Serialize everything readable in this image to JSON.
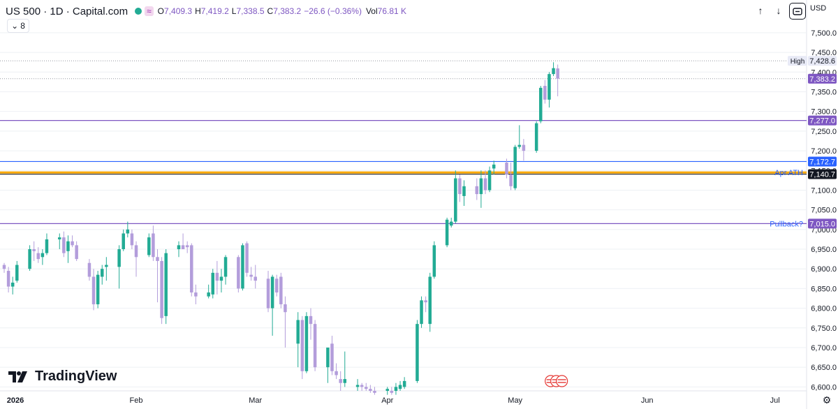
{
  "header": {
    "title": "US 500 · 1D · Capital.com",
    "wave_icon": "≈",
    "o_label": "O",
    "o_value": "7,409.3",
    "h_label": "H",
    "h_value": "7,419.2",
    "l_label": "L",
    "l_value": "7,338.5",
    "c_label": "C",
    "c_value": "7,383.2",
    "change": "−26.6 (−0.36%)",
    "vol_label": "Vol",
    "vol_value": "76.81 K",
    "collapse_count": "8",
    "currency": "USD"
  },
  "toolbar": {
    "up_icon": "↑",
    "down_icon": "↓",
    "settings_icon": "⚙"
  },
  "brand": {
    "name": "TradingView"
  },
  "colors": {
    "up": "#22ab94",
    "down": "#b39ddb",
    "purple_line": "#7e57c2",
    "blue_line": "#2962ff",
    "orange_line": "#f7a600",
    "grid": "#eef0f4"
  },
  "chart_data": {
    "type": "candlestick",
    "symbol": "US 500",
    "interval": "1D",
    "y_ticks": [
      "7,500.0",
      "7,450.0",
      "7,400.0",
      "7,350.0",
      "7,300.0",
      "7,250.0",
      "7,200.0",
      "7,150.0",
      "7,100.0",
      "7,050.0",
      "7,000.0",
      "6,950.0",
      "6,900.0",
      "6,850.0",
      "6,800.0",
      "6,750.0",
      "6,700.0",
      "6,650.0",
      "6,600.0"
    ],
    "y_tick_values": [
      7500,
      7450,
      7400,
      7350,
      7300,
      7250,
      7200,
      7150,
      7100,
      7050,
      7000,
      6950,
      6900,
      6850,
      6800,
      6750,
      6700,
      6650,
      6600
    ],
    "ylim": [
      6590,
      7530
    ],
    "x_labels": [
      {
        "label": "2026",
        "day": 0
      },
      {
        "label": "Feb",
        "day": 31
      },
      {
        "label": "Mar",
        "day": 59
      },
      {
        "label": "Apr",
        "day": 90
      },
      {
        "label": "May",
        "day": 120
      },
      {
        "label": "Jun",
        "day": 151
      },
      {
        "label": "Jul",
        "day": 181
      }
    ],
    "xlim_days": [
      0,
      185
    ],
    "candles": [
      {
        "d": 0,
        "o": 6910,
        "h": 6915,
        "l": 6890,
        "c": 6900
      },
      {
        "d": 1,
        "o": 6895,
        "h": 6905,
        "l": 6840,
        "c": 6855
      },
      {
        "d": 2,
        "o": 6855,
        "h": 6880,
        "l": 6835,
        "c": 6865
      },
      {
        "d": 3,
        "o": 6870,
        "h": 6920,
        "l": 6865,
        "c": 6910
      },
      {
        "d": 6,
        "o": 6900,
        "h": 6960,
        "l": 6895,
        "c": 6950
      },
      {
        "d": 7,
        "o": 6950,
        "h": 6970,
        "l": 6920,
        "c": 6945
      },
      {
        "d": 8,
        "o": 6940,
        "h": 6955,
        "l": 6915,
        "c": 6925
      },
      {
        "d": 9,
        "o": 6930,
        "h": 6950,
        "l": 6910,
        "c": 6940
      },
      {
        "d": 10,
        "o": 6940,
        "h": 6990,
        "l": 6935,
        "c": 6975
      },
      {
        "d": 13,
        "o": 6975,
        "h": 6990,
        "l": 6950,
        "c": 6980
      },
      {
        "d": 14,
        "o": 6980,
        "h": 6995,
        "l": 6930,
        "c": 6940
      },
      {
        "d": 15,
        "o": 6945,
        "h": 6985,
        "l": 6915,
        "c": 6970
      },
      {
        "d": 16,
        "o": 6970,
        "h": 6985,
        "l": 6955,
        "c": 6960
      },
      {
        "d": 17,
        "o": 6960,
        "h": 6970,
        "l": 6920,
        "c": 6925
      },
      {
        "d": 20,
        "o": 6915,
        "h": 6925,
        "l": 6870,
        "c": 6880
      },
      {
        "d": 21,
        "o": 6880,
        "h": 6900,
        "l": 6795,
        "c": 6810
      },
      {
        "d": 22,
        "o": 6810,
        "h": 6895,
        "l": 6800,
        "c": 6885
      },
      {
        "d": 23,
        "o": 6880,
        "h": 6910,
        "l": 6860,
        "c": 6900
      },
      {
        "d": 24,
        "o": 6905,
        "h": 6930,
        "l": 6870,
        "c": 6910
      },
      {
        "d": 27,
        "o": 6905,
        "h": 6960,
        "l": 6850,
        "c": 6950
      },
      {
        "d": 28,
        "o": 6950,
        "h": 7000,
        "l": 6945,
        "c": 6990
      },
      {
        "d": 29,
        "o": 6990,
        "h": 7020,
        "l": 6980,
        "c": 7000
      },
      {
        "d": 30,
        "o": 6990,
        "h": 7000,
        "l": 6950,
        "c": 6960
      },
      {
        "d": 31,
        "o": 6960,
        "h": 6970,
        "l": 6880,
        "c": 6930
      },
      {
        "d": 34,
        "o": 6935,
        "h": 6990,
        "l": 6930,
        "c": 6980
      },
      {
        "d": 35,
        "o": 6990,
        "h": 7010,
        "l": 6920,
        "c": 6930
      },
      {
        "d": 36,
        "o": 6930,
        "h": 6950,
        "l": 6815,
        "c": 6920
      },
      {
        "d": 37,
        "o": 6920,
        "h": 6930,
        "l": 6760,
        "c": 6775
      },
      {
        "d": 38,
        "o": 6780,
        "h": 6950,
        "l": 6760,
        "c": 6940
      },
      {
        "d": 41,
        "o": 6950,
        "h": 6970,
        "l": 6930,
        "c": 6960
      },
      {
        "d": 42,
        "o": 6960,
        "h": 6990,
        "l": 6950,
        "c": 6950
      },
      {
        "d": 43,
        "o": 6960,
        "h": 6970,
        "l": 6940,
        "c": 6955
      },
      {
        "d": 44,
        "o": 6960,
        "h": 6965,
        "l": 6830,
        "c": 6840
      },
      {
        "d": 45,
        "o": 6840,
        "h": 6860,
        "l": 6810,
        "c": 6830
      },
      {
        "d": 48,
        "o": 6830,
        "h": 6860,
        "l": 6825,
        "c": 6840
      },
      {
        "d": 49,
        "o": 6835,
        "h": 6900,
        "l": 6825,
        "c": 6890
      },
      {
        "d": 50,
        "o": 6890,
        "h": 6920,
        "l": 6835,
        "c": 6870
      },
      {
        "d": 51,
        "o": 6870,
        "h": 6900,
        "l": 6840,
        "c": 6880
      },
      {
        "d": 52,
        "o": 6880,
        "h": 6935,
        "l": 6860,
        "c": 6930
      },
      {
        "d": 55,
        "o": 6930,
        "h": 6935,
        "l": 6840,
        "c": 6850
      },
      {
        "d": 56,
        "o": 6850,
        "h": 6965,
        "l": 6845,
        "c": 6960
      },
      {
        "d": 57,
        "o": 6965,
        "h": 6970,
        "l": 6880,
        "c": 6890
      },
      {
        "d": 58,
        "o": 6885,
        "h": 6905,
        "l": 6870,
        "c": 6880
      },
      {
        "d": 59,
        "o": 6880,
        "h": 6910,
        "l": 6850,
        "c": 6870
      },
      {
        "d": 62,
        "o": 6875,
        "h": 6895,
        "l": 6790,
        "c": 6800
      },
      {
        "d": 63,
        "o": 6800,
        "h": 6885,
        "l": 6730,
        "c": 6880
      },
      {
        "d": 64,
        "o": 6875,
        "h": 6885,
        "l": 6830,
        "c": 6840
      },
      {
        "d": 65,
        "o": 6880,
        "h": 6890,
        "l": 6800,
        "c": 6810
      },
      {
        "d": 66,
        "o": 6810,
        "h": 6830,
        "l": 6700,
        "c": 6790
      },
      {
        "d": 69,
        "o": 6710,
        "h": 6790,
        "l": 6650,
        "c": 6770
      },
      {
        "d": 70,
        "o": 6770,
        "h": 6780,
        "l": 6620,
        "c": 6640
      },
      {
        "d": 71,
        "o": 6640,
        "h": 6790,
        "l": 6635,
        "c": 6780
      },
      {
        "d": 72,
        "o": 6780,
        "h": 6800,
        "l": 6720,
        "c": 6760
      },
      {
        "d": 73,
        "o": 6760,
        "h": 6770,
        "l": 6640,
        "c": 6650
      },
      {
        "d": 76,
        "o": 6650,
        "h": 6700,
        "l": 6610,
        "c": 6700
      },
      {
        "d": 77,
        "o": 6710,
        "h": 6730,
        "l": 6630,
        "c": 6640
      },
      {
        "d": 78,
        "o": 6640,
        "h": 6660,
        "l": 6620,
        "c": 6630
      },
      {
        "d": 79,
        "o": 6620,
        "h": 6640,
        "l": 6590,
        "c": 6610
      },
      {
        "d": 80,
        "o": 6610,
        "h": 6690,
        "l": 6600,
        "c": 6620
      },
      {
        "d": 83,
        "o": 6600,
        "h": 6620,
        "l": 6590,
        "c": 6605
      },
      {
        "d": 84,
        "o": 6605,
        "h": 6610,
        "l": 6590,
        "c": 6600
      },
      {
        "d": 85,
        "o": 6600,
        "h": 6610,
        "l": 6590,
        "c": 6595
      },
      {
        "d": 86,
        "o": 6595,
        "h": 6605,
        "l": 6585,
        "c": 6590
      },
      {
        "d": 87,
        "o": 6590,
        "h": 6600,
        "l": 6580,
        "c": 6585
      },
      {
        "d": 90,
        "o": 6590,
        "h": 6600,
        "l": 6580,
        "c": 6595
      },
      {
        "d": 91,
        "o": 6590,
        "h": 6600,
        "l": 6580,
        "c": 6585
      },
      {
        "d": 92,
        "o": 6590,
        "h": 6610,
        "l": 6580,
        "c": 6600
      },
      {
        "d": 93,
        "o": 6595,
        "h": 6615,
        "l": 6590,
        "c": 6605
      },
      {
        "d": 94,
        "o": 6600,
        "h": 6625,
        "l": 6595,
        "c": 6615
      },
      {
        "d": 97,
        "o": 6615,
        "h": 6770,
        "l": 6610,
        "c": 6760
      },
      {
        "d": 98,
        "o": 6760,
        "h": 6830,
        "l": 6750,
        "c": 6820
      },
      {
        "d": 99,
        "o": 6820,
        "h": 6830,
        "l": 6790,
        "c": 6815
      },
      {
        "d": 100,
        "o": 6760,
        "h": 6890,
        "l": 6740,
        "c": 6880
      },
      {
        "d": 101,
        "o": 6880,
        "h": 6970,
        "l": 6875,
        "c": 6960
      },
      {
        "d": 104,
        "o": 6960,
        "h": 7030,
        "l": 6955,
        "c": 7025
      },
      {
        "d": 105,
        "o": 7010,
        "h": 7030,
        "l": 7005,
        "c": 7020
      },
      {
        "d": 106,
        "o": 7020,
        "h": 7150,
        "l": 7015,
        "c": 7130
      },
      {
        "d": 107,
        "o": 7130,
        "h": 7140,
        "l": 7070,
        "c": 7090
      },
      {
        "d": 108,
        "o": 7085,
        "h": 7125,
        "l": 7060,
        "c": 7110
      },
      {
        "d": 111,
        "o": 7110,
        "h": 7130,
        "l": 7075,
        "c": 7090
      },
      {
        "d": 112,
        "o": 7090,
        "h": 7150,
        "l": 7055,
        "c": 7130
      },
      {
        "d": 113,
        "o": 7130,
        "h": 7150,
        "l": 7090,
        "c": 7100
      },
      {
        "d": 114,
        "o": 7100,
        "h": 7160,
        "l": 7095,
        "c": 7150
      },
      {
        "d": 115,
        "o": 7155,
        "h": 7175,
        "l": 7140,
        "c": 7165
      },
      {
        "d": 118,
        "o": 7170,
        "h": 7180,
        "l": 7130,
        "c": 7140
      },
      {
        "d": 119,
        "o": 7140,
        "h": 7170,
        "l": 7100,
        "c": 7110
      },
      {
        "d": 120,
        "o": 7105,
        "h": 7215,
        "l": 7100,
        "c": 7210
      },
      {
        "d": 121,
        "o": 7210,
        "h": 7265,
        "l": 7205,
        "c": 7215
      },
      {
        "d": 122,
        "o": 7215,
        "h": 7230,
        "l": 7175,
        "c": 7200
      },
      {
        "d": 125,
        "o": 7200,
        "h": 7275,
        "l": 7195,
        "c": 7270
      },
      {
        "d": 126,
        "o": 7275,
        "h": 7365,
        "l": 7270,
        "c": 7360
      },
      {
        "d": 127,
        "o": 7365,
        "h": 7380,
        "l": 7320,
        "c": 7330
      },
      {
        "d": 128,
        "o": 7330,
        "h": 7400,
        "l": 7310,
        "c": 7395
      },
      {
        "d": 129,
        "o": 7395,
        "h": 7425,
        "l": 7390,
        "c": 7410
      },
      {
        "d": 130,
        "o": 7409.3,
        "h": 7419.2,
        "l": 7338.5,
        "c": 7383.2
      }
    ],
    "price_lines": [
      {
        "value": 7277.0,
        "label": "7,277.0",
        "color": "#7e57c2",
        "width": 1.2
      },
      {
        "value": 7172.7,
        "label": "7,172.7",
        "color": "#2962ff",
        "width": 1.2
      },
      {
        "value": 7145.0,
        "label": "",
        "color": "#f7a600",
        "width": 3
      },
      {
        "value": 7140.7,
        "label": "7,140.7",
        "color": "#131722",
        "width": 1
      },
      {
        "value": 7015.0,
        "label": "7,015.0",
        "color": "#7e57c2",
        "width": 1.2
      }
    ],
    "dotted_lines": [
      {
        "value": 7428.6,
        "label": "7,428.6",
        "tag": "High"
      },
      {
        "value": 7383.2,
        "label": "7,383.2",
        "tag": ""
      }
    ],
    "annotations": [
      {
        "text": "Apr ATH",
        "value": 7145.0
      },
      {
        "text": "Pullback?",
        "value": 7015.0
      }
    ]
  }
}
